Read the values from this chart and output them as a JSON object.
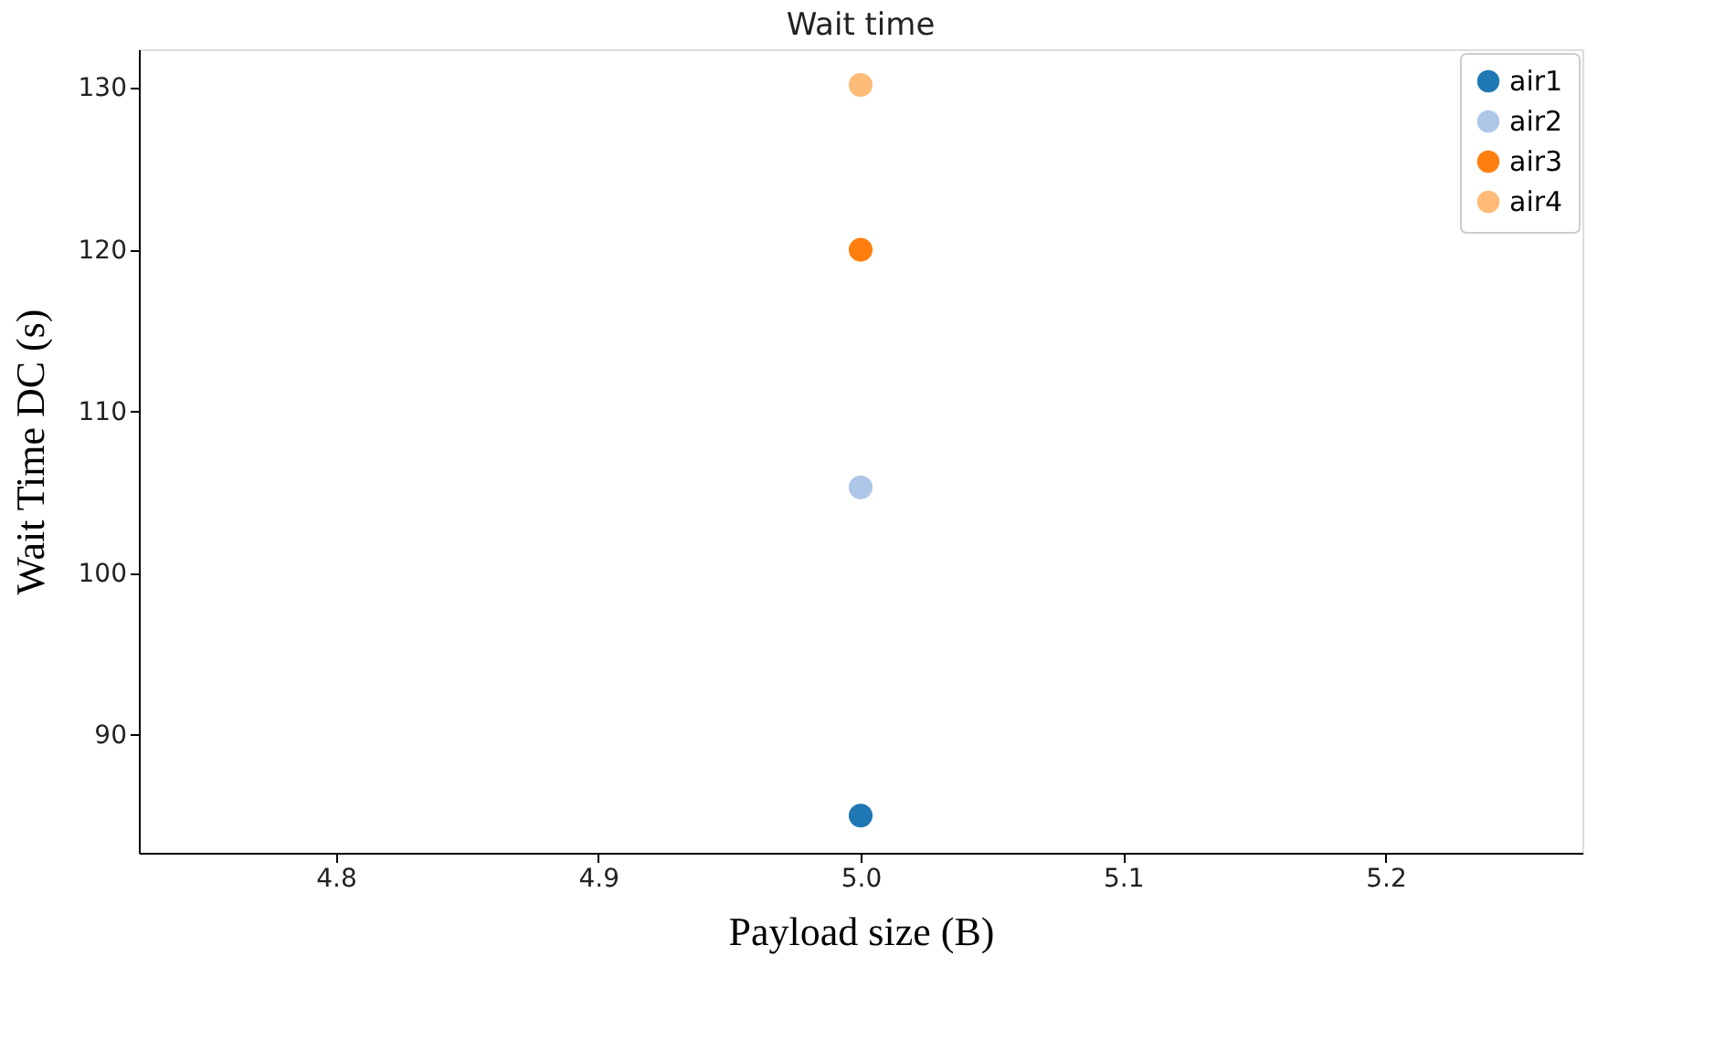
{
  "chart_data": {
    "type": "scatter",
    "title": "Wait time",
    "xlabel": "Payload size (B)",
    "ylabel": "Wait Time DC (s)",
    "series": [
      {
        "name": "air1",
        "color": "#1f77b4",
        "values": [
          85.0
        ]
      },
      {
        "name": "air2",
        "color": "#aec7e8",
        "values": [
          105.3
        ]
      },
      {
        "name": "air3",
        "color": "#ff7f0e",
        "values": [
          120.0
        ]
      },
      {
        "name": "air4",
        "color": "#ffbb78",
        "values": [
          130.2
        ]
      }
    ],
    "x": [
      5.0
    ],
    "xlim": [
      4.725,
      5.275
    ],
    "xticks": [
      4.8,
      4.9,
      {
        "value": 5.0,
        "label": "5.0"
      },
      5.1,
      5.2
    ],
    "ylim": [
      82.7,
      132.4
    ],
    "yticks": [
      90,
      100,
      110,
      120,
      130
    ],
    "grid": false,
    "legend": "top right",
    "marker": "circle"
  }
}
